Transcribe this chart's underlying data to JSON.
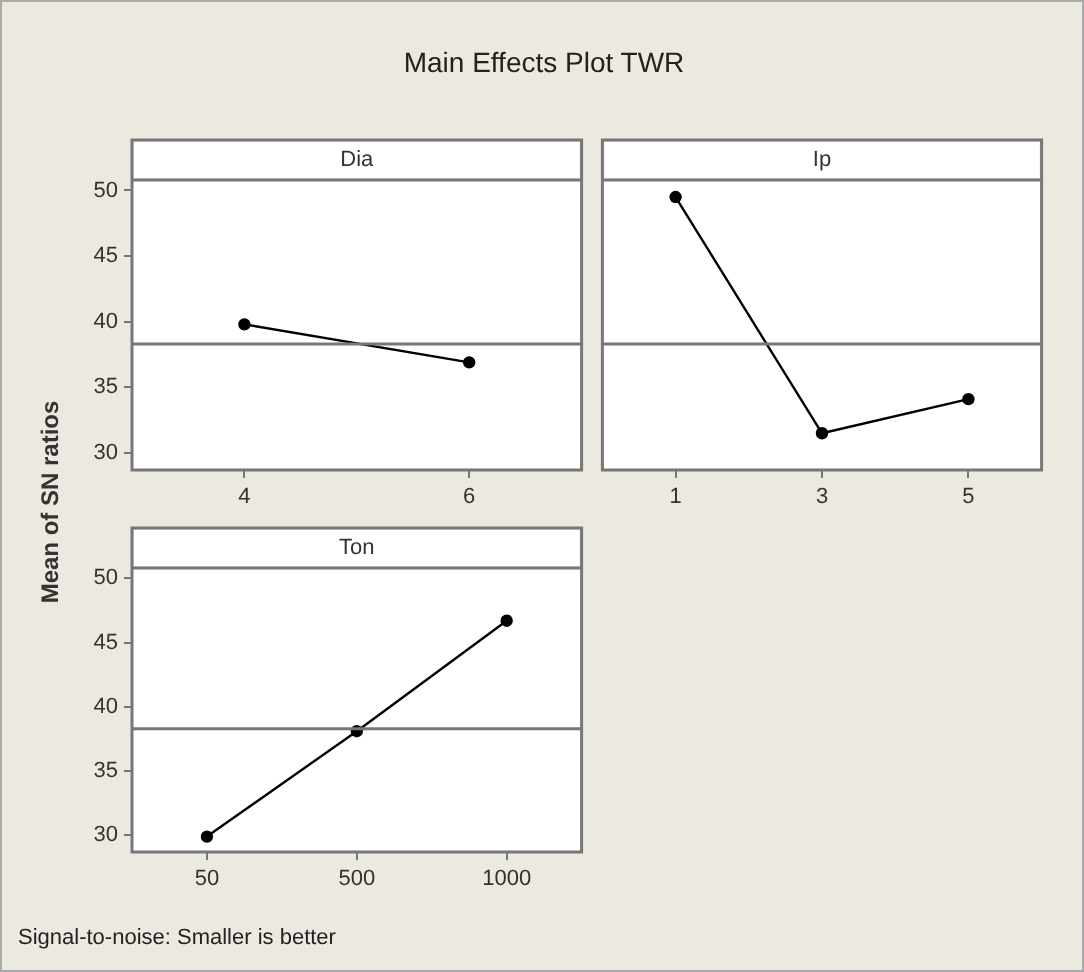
{
  "chart_data": [
    {
      "type": "line",
      "title": "Main Effects Plot TWR",
      "ylabel": "Mean of SN ratios",
      "xlabel": "Dia",
      "categories": [
        "4",
        "6"
      ],
      "values": [
        39.8,
        36.9
      ],
      "color": "#000000",
      "marker": "circle",
      "ylim": [
        28.7,
        50.8
      ],
      "yticks": [
        30,
        35,
        40,
        45,
        50
      ],
      "ref_lines": [
        {
          "axis": "y",
          "value": 38.3
        }
      ],
      "annotations": [
        "Signal-to-noise: Smaller is better"
      ]
    },
    {
      "type": "line",
      "xlabel": "Ip",
      "categories": [
        "1",
        "3",
        "5"
      ],
      "values": [
        49.5,
        31.5,
        34.1
      ],
      "color": "#000000",
      "marker": "circle",
      "ylim": [
        28.7,
        50.8
      ],
      "yticks": [
        30,
        35,
        40,
        45,
        50
      ],
      "ref_lines": [
        {
          "axis": "y",
          "value": 38.3
        }
      ],
      "tick_labels": "x"
    },
    {
      "type": "line",
      "xlabel": "Ton",
      "categories": [
        "50",
        "500",
        "1000"
      ],
      "values": [
        29.9,
        38.1,
        46.7
      ],
      "color": "#000000",
      "marker": "circle",
      "ylim": [
        28.7,
        50.8
      ],
      "yticks": [
        30,
        35,
        40,
        45,
        50
      ],
      "ref_lines": [
        {
          "axis": "y",
          "value": 38.3
        }
      ]
    }
  ]
}
